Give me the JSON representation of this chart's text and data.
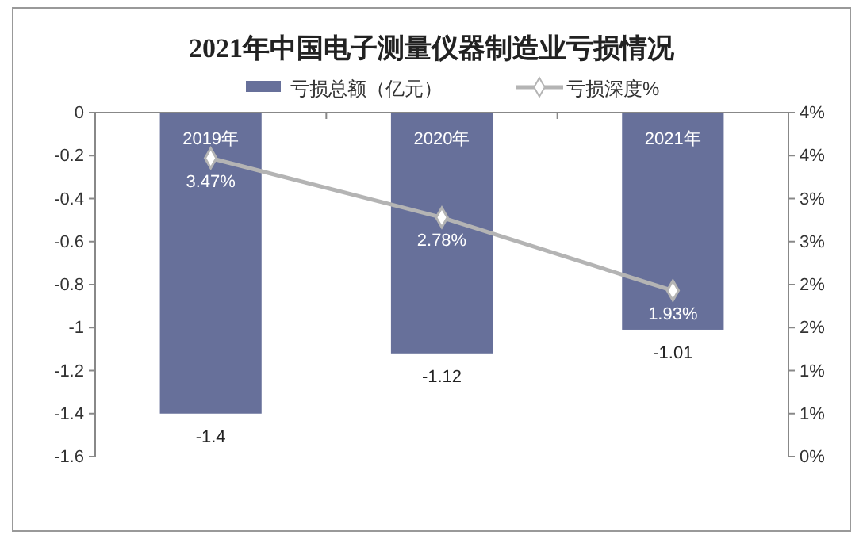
{
  "chart_data": {
    "type": "bar",
    "title": "2021年中国电子测量仪器制造业亏损情况",
    "categories": [
      "2019年",
      "2020年",
      "2021年"
    ],
    "series": [
      {
        "name": "亏损总额（亿元）",
        "color": "#67709a",
        "values": [
          -1.4,
          -1.12,
          -1.01
        ],
        "value_labels": [
          "-1.4",
          "-1.12",
          "-1.01"
        ]
      },
      {
        "name": "亏损深度%",
        "type": "line",
        "axis": "y2",
        "color": "#b4b4b4",
        "values": [
          3.47,
          2.78,
          1.93
        ],
        "value_labels": [
          "3.47%",
          "2.78%",
          "1.93%"
        ]
      }
    ],
    "ylim": [
      -1.6,
      0
    ],
    "yticks": [
      -1.6,
      -1.4,
      -1.2,
      -1,
      -0.8,
      -0.6,
      -0.4,
      -0.2,
      0
    ],
    "y2lim": [
      0,
      4
    ],
    "y2ticks": [
      {
        "value": 0,
        "label": "0%"
      },
      {
        "value": 0.5,
        "label": "1%"
      },
      {
        "value": 1,
        "label": "1%"
      },
      {
        "value": 1.5,
        "label": "2%"
      },
      {
        "value": 2,
        "label": "2%"
      },
      {
        "value": 2.5,
        "label": "3%"
      },
      {
        "value": 3,
        "label": "3%"
      },
      {
        "value": 3.5,
        "label": "4%"
      },
      {
        "value": 4,
        "label": "4%"
      }
    ],
    "marker": "diamond",
    "legend": "top",
    "grid": false
  }
}
